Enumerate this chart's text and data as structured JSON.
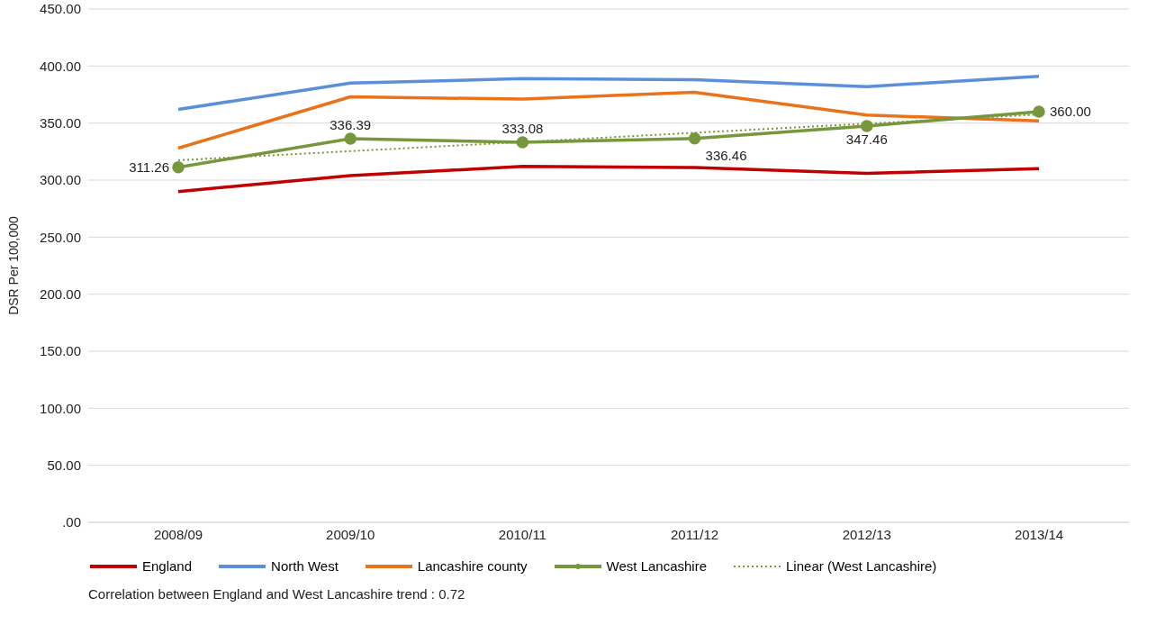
{
  "chart_data": {
    "type": "line",
    "ylabel": "DSR Per 100,000",
    "categories": [
      "2008/09",
      "2009/10",
      "2010/11",
      "2011/12",
      "2012/13",
      "2013/14"
    ],
    "ylim": [
      0,
      450
    ],
    "yticks": [
      {
        "value": 0,
        "label": ".00"
      },
      {
        "value": 50,
        "label": "50.00"
      },
      {
        "value": 100,
        "label": "100.00"
      },
      {
        "value": 150,
        "label": "150.00"
      },
      {
        "value": 200,
        "label": "200.00"
      },
      {
        "value": 250,
        "label": "250.00"
      },
      {
        "value": 300,
        "label": "300.00"
      },
      {
        "value": 350,
        "label": "350.00"
      },
      {
        "value": 400,
        "label": "400.00"
      },
      {
        "value": 450,
        "label": "450.00"
      }
    ],
    "grid": "y",
    "legend": "bottom",
    "marker": "none",
    "line_style": "solid",
    "series": [
      {
        "name": "England",
        "color": "#c00000",
        "values": [
          290,
          304,
          312,
          311,
          306,
          310
        ]
      },
      {
        "name": "North West",
        "color": "#5b8fd9",
        "values": [
          362,
          385,
          389,
          388,
          382,
          391
        ]
      },
      {
        "name": "Lancashire county",
        "color": "#e8731a",
        "values": [
          328,
          373,
          371,
          377,
          357,
          352
        ]
      },
      {
        "name": "West Lancashire",
        "color": "#77973d",
        "marker": "circle",
        "values": [
          311.26,
          336.39,
          333.08,
          336.46,
          347.46,
          360.0
        ],
        "value_labels": [
          "311.26",
          "336.39",
          "333.08",
          "336.46",
          "347.46",
          "360.00"
        ]
      },
      {
        "name": "Linear (West Lancashire)",
        "color": "#77973d",
        "line_style": "dotted",
        "values": [
          317.4,
          325.4,
          333.4,
          341.5,
          349.5,
          357.5
        ]
      }
    ],
    "annotations": [
      "Correlation between England and West Lancashire trend : 0.72"
    ]
  }
}
